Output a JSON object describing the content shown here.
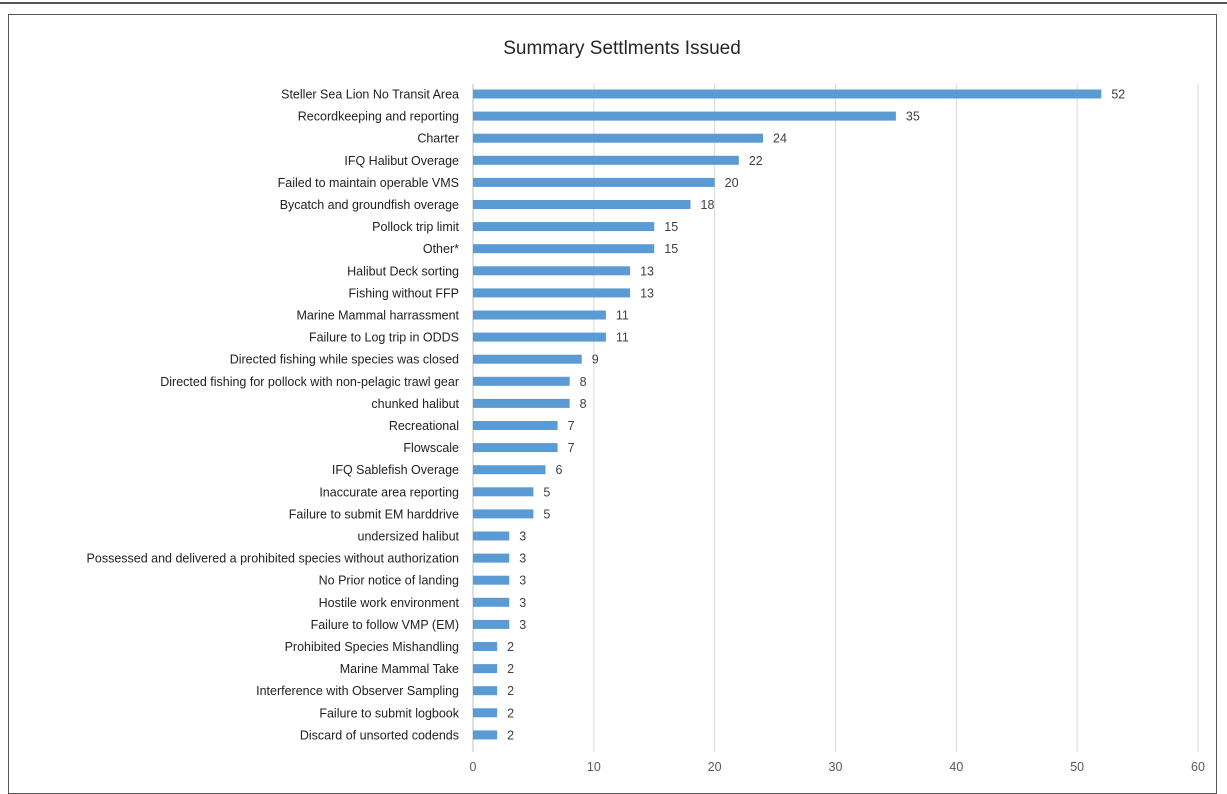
{
  "chart_data": {
    "type": "bar",
    "orientation": "horizontal",
    "title": "Summary Settlments Issued",
    "xlabel": "",
    "ylabel": "",
    "xlim": [
      0,
      60
    ],
    "xticks": [
      0,
      10,
      20,
      30,
      40,
      50,
      60
    ],
    "grid": "vertical",
    "bar_color": "#5b9bd5",
    "categories": [
      "Steller Sea Lion No Transit Area",
      "Recordkeeping and reporting",
      "Charter",
      "IFQ Halibut Overage",
      "Failed to maintain operable VMS",
      "Bycatch and groundfish overage",
      "Pollock trip limit",
      "Other*",
      "Halibut Deck sorting",
      "Fishing without FFP",
      "Marine Mammal harrassment",
      "Failure to Log trip in ODDS",
      "Directed fishing while species was closed",
      "Directed fishing for pollock with non-pelagic trawl gear",
      "chunked halibut",
      "Recreational",
      "Flowscale",
      "IFQ Sablefish Overage",
      "Inaccurate area reporting",
      "Failure to submit EM harddrive",
      "undersized halibut",
      "Possessed and delivered a prohibited species without authorization",
      "No Prior notice of landing",
      "Hostile work environment",
      "Failure to follow VMP (EM)",
      "Prohibited Species Mishandling",
      "Marine Mammal Take",
      "Interference with Observer Sampling",
      "Failure to submit logbook",
      "Discard of unsorted codends"
    ],
    "values": [
      52,
      35,
      24,
      22,
      20,
      18,
      15,
      15,
      13,
      13,
      11,
      11,
      9,
      8,
      8,
      7,
      7,
      6,
      5,
      5,
      3,
      3,
      3,
      3,
      3,
      2,
      2,
      2,
      2,
      2
    ]
  }
}
